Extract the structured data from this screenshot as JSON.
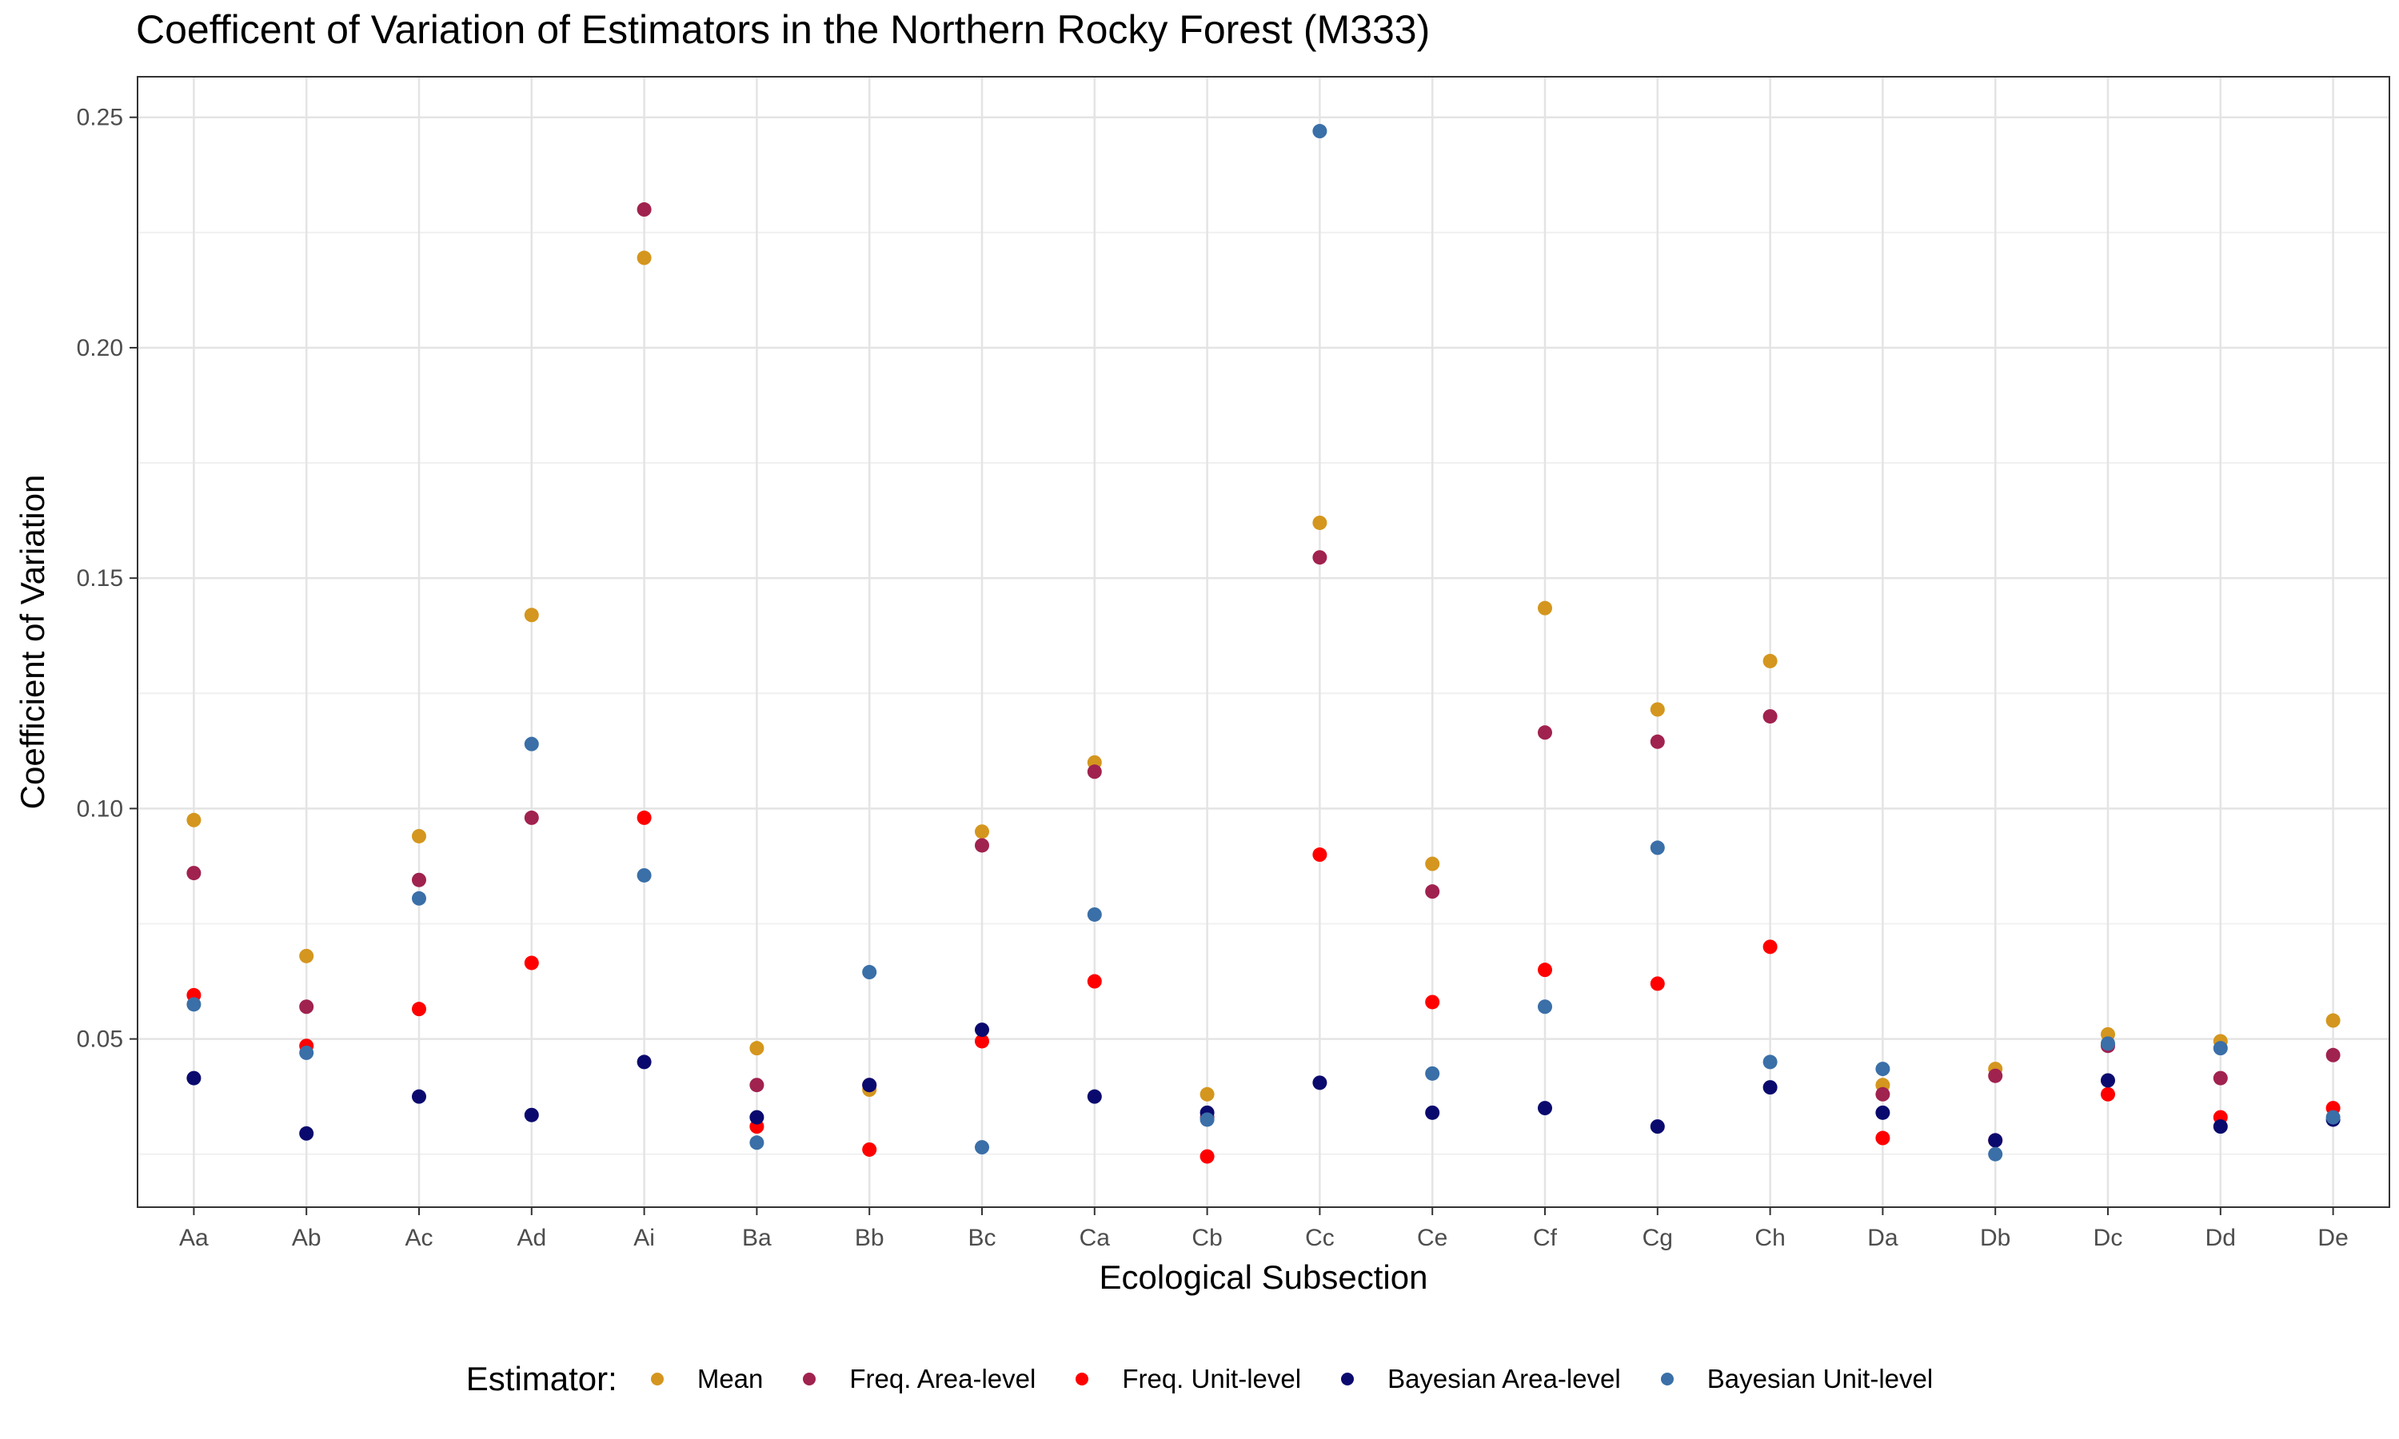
{
  "chart_data": {
    "type": "scatter",
    "title": "Coefficent of Variation of Estimators in the Northern Rocky Forest (M333)",
    "xlabel": "Ecological Subsection",
    "ylabel": "Coefficient of Variation",
    "categories": [
      "Aa",
      "Ab",
      "Ac",
      "Ad",
      "Ai",
      "Ba",
      "Bb",
      "Bc",
      "Ca",
      "Cb",
      "Cc",
      "Ce",
      "Cf",
      "Cg",
      "Ch",
      "Da",
      "Db",
      "Dc",
      "Dd",
      "De"
    ],
    "ylim": [
      0.0135,
      0.2588
    ],
    "yticks": [
      0.05,
      0.1,
      0.15,
      0.2,
      0.25
    ],
    "ytick_labels": [
      "0.05",
      "0.10",
      "0.15",
      "0.20",
      "0.25"
    ],
    "grid": true,
    "legend_title": "Estimator:",
    "legend_position": "bottom",
    "series": [
      {
        "name": "Mean",
        "color": "#D4961E",
        "values": [
          0.0975,
          0.068,
          0.094,
          0.142,
          0.2195,
          0.048,
          0.039,
          0.095,
          0.11,
          0.038,
          0.162,
          0.088,
          0.1435,
          0.1215,
          0.132,
          0.04,
          0.0435,
          0.051,
          0.0495,
          0.054
        ]
      },
      {
        "name": "Freq. Area-level",
        "color": "#A0224F",
        "values": [
          0.086,
          0.057,
          0.0845,
          0.098,
          0.23,
          0.04,
          0.04,
          0.092,
          0.108,
          0.033,
          0.1545,
          0.082,
          0.1165,
          0.1145,
          0.12,
          0.038,
          0.042,
          0.0485,
          0.0415,
          0.0465
        ]
      },
      {
        "name": "Freq. Unit-level",
        "color": "#FF0000",
        "values": [
          0.0595,
          0.0485,
          0.0565,
          0.0665,
          0.098,
          0.031,
          0.026,
          0.0495,
          0.0625,
          0.0245,
          0.09,
          0.058,
          0.065,
          0.062,
          0.07,
          0.0285,
          0.028,
          0.038,
          0.033,
          0.035
        ]
      },
      {
        "name": "Bayesian Area-level",
        "color": "#0A0A6E",
        "values": [
          0.0415,
          0.0295,
          0.0375,
          0.0335,
          0.045,
          0.033,
          0.04,
          0.052,
          0.0375,
          0.034,
          0.0405,
          0.034,
          0.035,
          0.031,
          0.0395,
          0.034,
          0.028,
          0.041,
          0.031,
          0.0325
        ]
      },
      {
        "name": "Bayesian Unit-level",
        "color": "#3A6FA8",
        "values": [
          0.0575,
          0.047,
          0.0805,
          0.114,
          0.0855,
          0.0275,
          0.0645,
          0.0265,
          0.077,
          0.0325,
          0.247,
          0.0425,
          0.057,
          0.0915,
          0.045,
          0.0435,
          0.025,
          0.049,
          0.048,
          0.033
        ]
      }
    ]
  }
}
